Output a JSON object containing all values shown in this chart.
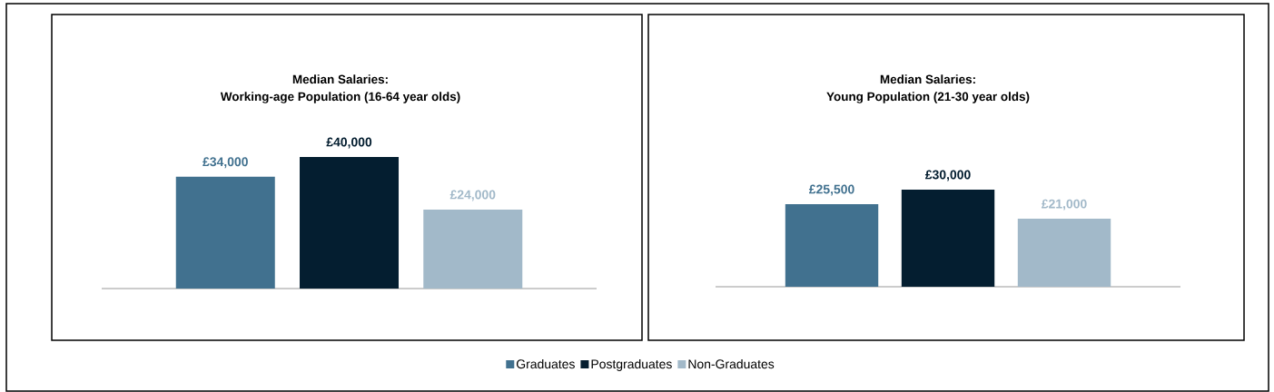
{
  "chart_data": [
    {
      "type": "bar",
      "title": "Median Salaries:",
      "subtitle": "Working-age Population  (16-64 year olds)",
      "categories": [
        null
      ],
      "legend": "bottom",
      "series": [
        {
          "name": "Graduates",
          "color": "#41718f",
          "values": [
            34000
          ],
          "value_labels": [
            "£34,000"
          ]
        },
        {
          "name": "Postgraduates",
          "color": "#041e30",
          "values": [
            40000
          ],
          "value_labels": [
            "£40,000"
          ]
        },
        {
          "name": "Non-Graduates",
          "color": "#a2b9c9",
          "values": [
            24000
          ],
          "value_labels": [
            "£24,000"
          ]
        }
      ]
    },
    {
      "type": "bar",
      "title": "Median Salaries:",
      "subtitle": "Young Population (21-30 year olds)",
      "categories": [
        null
      ],
      "series": [
        {
          "color": "#41718f",
          "values": [
            25500
          ],
          "value_labels": [
            "£25,500"
          ]
        },
        {
          "color": "#041e30",
          "values": [
            30000
          ],
          "value_labels": [
            "£30,000"
          ]
        },
        {
          "color": "#a2b9c9",
          "values": [
            21000
          ],
          "value_labels": [
            "£21,000"
          ]
        }
      ]
    }
  ]
}
